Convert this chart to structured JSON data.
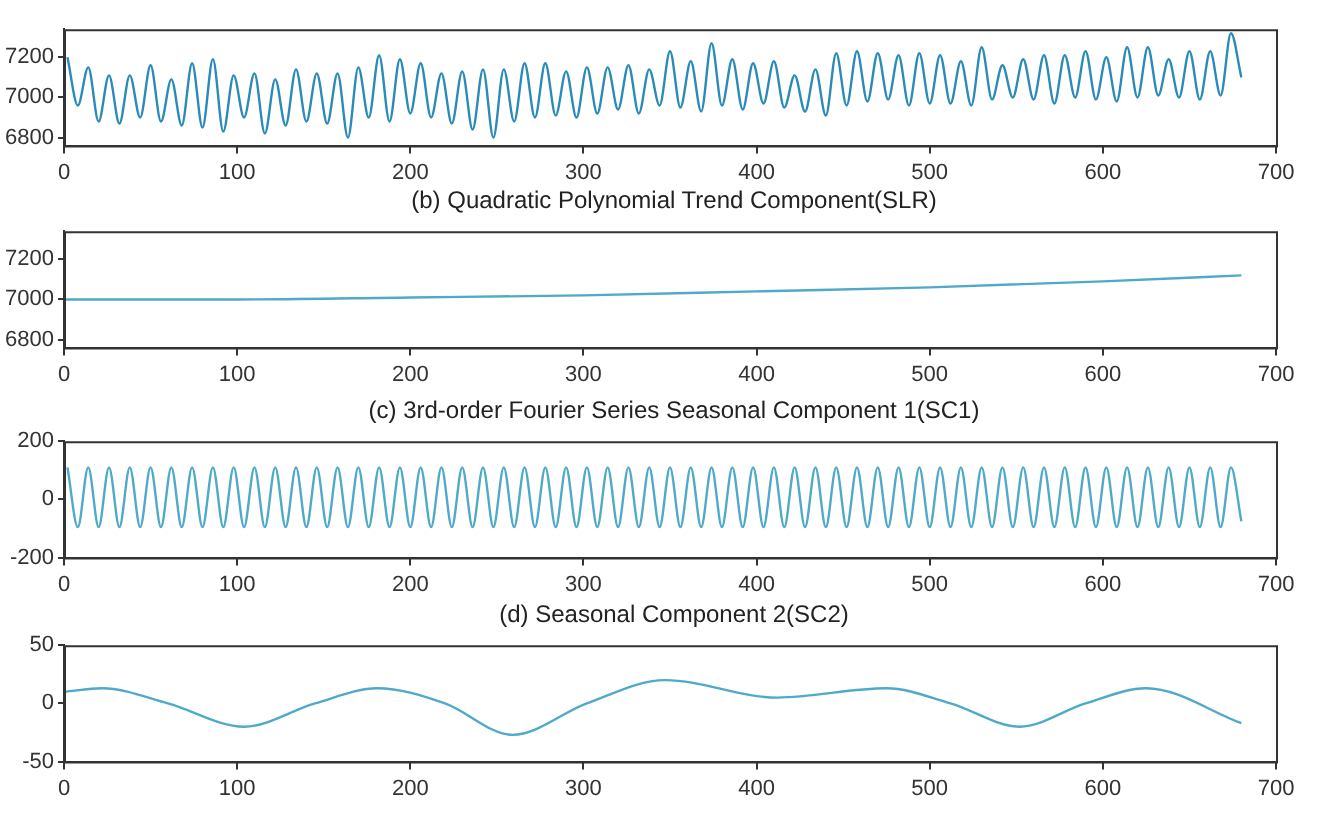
{
  "chart_data": [
    {
      "type": "line",
      "xlim": [
        0,
        700
      ],
      "xticks": [
        0,
        100,
        200,
        300,
        400,
        500,
        600,
        700
      ],
      "ylim": [
        6760,
        7340
      ],
      "yticks": [
        6800,
        7000,
        7200
      ],
      "x": [
        2,
        8,
        14,
        20,
        26,
        32,
        38,
        44,
        50,
        56,
        62,
        68,
        74,
        80,
        86,
        92,
        98,
        104,
        110,
        116,
        122,
        128,
        134,
        140,
        146,
        152,
        158,
        164,
        170,
        176,
        182,
        188,
        194,
        200,
        206,
        212,
        218,
        224,
        230,
        236,
        242,
        248,
        254,
        260,
        266,
        272,
        278,
        284,
        290,
        296,
        302,
        308,
        314,
        320,
        326,
        332,
        338,
        344,
        350,
        356,
        362,
        368,
        374,
        380,
        386,
        392,
        398,
        404,
        410,
        416,
        422,
        428,
        434,
        440,
        446,
        452,
        458,
        464,
        470,
        476,
        482,
        488,
        494,
        500,
        506,
        512,
        518,
        524,
        530,
        536,
        542,
        548,
        554,
        560,
        566,
        572,
        578,
        584,
        590,
        596,
        602,
        608,
        614,
        620,
        626,
        632,
        638,
        644,
        650,
        656,
        662,
        668,
        674,
        680
      ],
      "series": [
        {
          "color": "#2a8ab8",
          "values": [
            7200,
            6960,
            7150,
            6880,
            7110,
            6870,
            7110,
            6900,
            7160,
            6880,
            7090,
            6860,
            7170,
            6850,
            7190,
            6830,
            7110,
            6900,
            7120,
            6820,
            7090,
            6860,
            7140,
            6880,
            7120,
            6870,
            7120,
            6800,
            7150,
            6900,
            7210,
            6880,
            7190,
            6920,
            7170,
            6900,
            7120,
            6870,
            7130,
            6840,
            7140,
            6800,
            7140,
            6880,
            7170,
            6900,
            7170,
            6910,
            7130,
            6900,
            7150,
            6920,
            7150,
            6940,
            7160,
            6920,
            7140,
            6960,
            7230,
            6950,
            7180,
            6930,
            7270,
            6960,
            7190,
            6940,
            7170,
            6970,
            7180,
            6950,
            7110,
            6930,
            7140,
            6910,
            7220,
            6960,
            7230,
            6980,
            7220,
            6990,
            7210,
            6960,
            7220,
            6970,
            7210,
            6970,
            7180,
            6960,
            7250,
            6990,
            7160,
            7000,
            7190,
            6990,
            7210,
            6970,
            7210,
            7000,
            7230,
            6990,
            7200,
            6980,
            7250,
            7000,
            7250,
            7010,
            7190,
            7000,
            7230,
            6990,
            7230,
            7010,
            7320,
            7100
          ]
        }
      ]
    },
    {
      "type": "line",
      "title": "(b) Quadratic Polynomial Trend Component(SLR)",
      "xlim": [
        0,
        700
      ],
      "xticks": [
        0,
        100,
        200,
        300,
        400,
        500,
        600,
        700
      ],
      "ylim": [
        6760,
        7340
      ],
      "yticks": [
        6800,
        7000,
        7200
      ],
      "x": [
        0,
        100,
        200,
        300,
        400,
        500,
        600,
        680
      ],
      "series": [
        {
          "color": "#4fa9c9",
          "values": [
            7000,
            7000,
            7010,
            7020,
            7040,
            7060,
            7090,
            7120
          ]
        }
      ]
    },
    {
      "type": "line",
      "title": "(c) 3rd-order Fourier Series Seasonal Component 1(SC1)",
      "xlim": [
        0,
        700
      ],
      "xticks": [
        0,
        100,
        200,
        300,
        400,
        500,
        600,
        700
      ],
      "ylim": [
        -200,
        200
      ],
      "yticks": [
        -200,
        0,
        200
      ],
      "x": [
        2,
        8,
        14,
        20,
        26,
        32,
        38,
        44,
        50,
        56,
        62,
        68,
        74,
        80,
        86,
        92,
        98,
        104,
        110,
        116,
        122,
        128,
        134,
        140,
        146,
        152,
        158,
        164,
        170,
        176,
        182,
        188,
        194,
        200,
        206,
        212,
        218,
        224,
        230,
        236,
        242,
        248,
        254,
        260,
        266,
        272,
        278,
        284,
        290,
        296,
        302,
        308,
        314,
        320,
        326,
        332,
        338,
        344,
        350,
        356,
        362,
        368,
        374,
        380,
        386,
        392,
        398,
        404,
        410,
        416,
        422,
        428,
        434,
        440,
        446,
        452,
        458,
        464,
        470,
        476,
        482,
        488,
        494,
        500,
        506,
        512,
        518,
        524,
        530,
        536,
        542,
        548,
        554,
        560,
        566,
        572,
        578,
        584,
        590,
        596,
        602,
        608,
        614,
        620,
        626,
        632,
        638,
        644,
        650,
        656,
        662,
        668,
        674,
        680
      ],
      "series": [
        {
          "color": "#4fa9c9",
          "values": [
            110,
            -95,
            110,
            -95,
            110,
            -95,
            110,
            -95,
            110,
            -95,
            110,
            -95,
            110,
            -95,
            110,
            -95,
            110,
            -95,
            110,
            -95,
            110,
            -95,
            110,
            -95,
            110,
            -95,
            110,
            -95,
            110,
            -95,
            110,
            -95,
            110,
            -95,
            110,
            -95,
            110,
            -95,
            110,
            -95,
            110,
            -95,
            110,
            -95,
            110,
            -95,
            110,
            -95,
            110,
            -95,
            110,
            -95,
            110,
            -95,
            110,
            -95,
            110,
            -95,
            110,
            -95,
            110,
            -95,
            110,
            -95,
            110,
            -95,
            110,
            -95,
            110,
            -95,
            110,
            -95,
            110,
            -95,
            110,
            -95,
            110,
            -95,
            110,
            -95,
            110,
            -95,
            110,
            -95,
            110,
            -95,
            110,
            -95,
            110,
            -95,
            110,
            -95,
            110,
            -95,
            110,
            -95,
            110,
            -95,
            110,
            -95,
            110,
            -95,
            110,
            -95,
            110,
            -95,
            110,
            -95,
            110,
            -95,
            110,
            -95,
            110,
            -75
          ]
        }
      ]
    },
    {
      "type": "line",
      "title": "(d) Seasonal Component 2(SC2)",
      "xlim": [
        0,
        700
      ],
      "xticks": [
        0,
        100,
        200,
        300,
        400,
        500,
        600,
        700
      ],
      "ylim": [
        -50,
        50
      ],
      "yticks": [
        -50,
        0,
        50
      ],
      "x": [
        0,
        22,
        60,
        104,
        145,
        181,
        220,
        259,
        302,
        347,
        412,
        475,
        512,
        552,
        590,
        625,
        680
      ],
      "series": [
        {
          "color": "#4fa9c9",
          "values": [
            10,
            13,
            0,
            -20,
            0,
            13,
            0,
            -27,
            0,
            20,
            5,
            13,
            0,
            -20,
            0,
            13,
            -17
          ]
        }
      ]
    }
  ]
}
